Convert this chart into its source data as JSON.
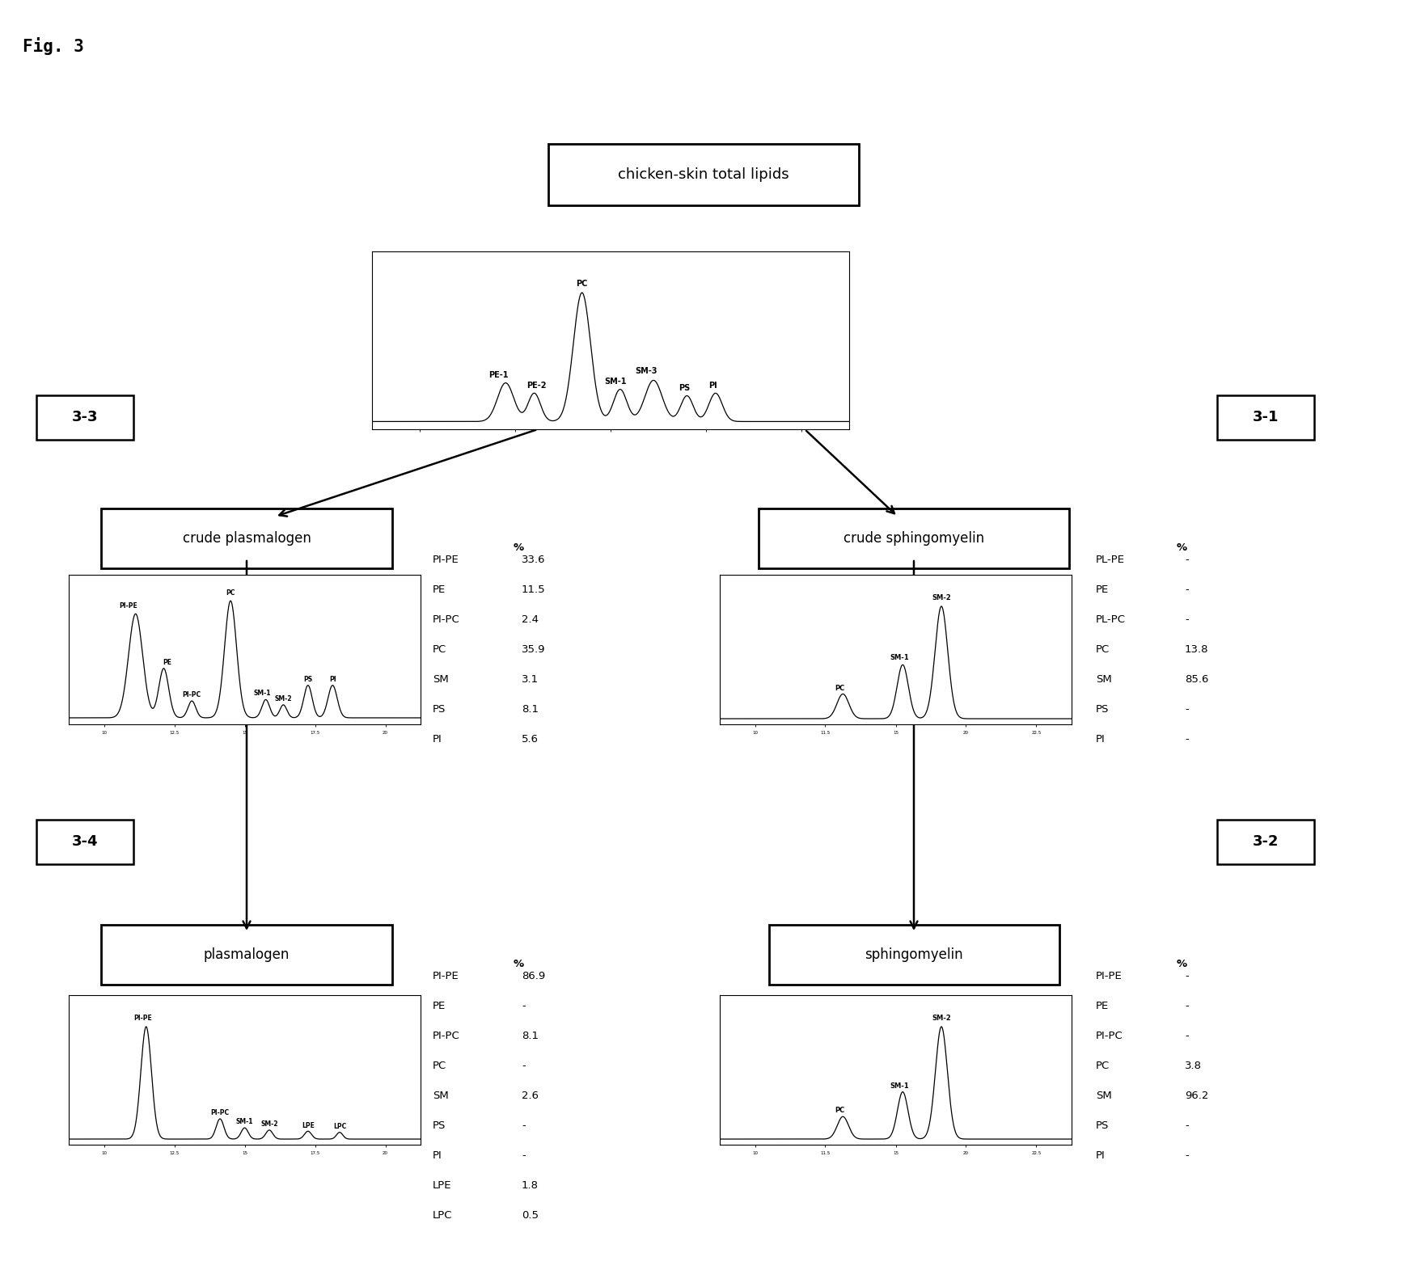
{
  "title": "Fig. 3",
  "bg": "#ffffff",
  "top_box": "chicken-skin total lipids",
  "box_cp": "crude plasmalogen",
  "box_cs": "crude sphingomyelin",
  "box_pl": "plasmalogen",
  "box_sm": "sphingomyelin",
  "num_33": "3-3",
  "num_31": "3-1",
  "num_34": "3-4",
  "num_32": "3-2",
  "pct_cp_labels": [
    "PI-PE",
    "PE",
    "PI-PC",
    "PC",
    "SM",
    "PS",
    "PI"
  ],
  "pct_cp_values": [
    "33.6",
    "11.5",
    "2.4",
    "35.9",
    "3.1",
    "8.1",
    "5.6"
  ],
  "pct_cs_labels": [
    "PL-PE",
    "PE",
    "PL-PC",
    "PC",
    "SM",
    "PS",
    "PI"
  ],
  "pct_cs_values": [
    "-",
    "-",
    "-",
    "13.8",
    "85.6",
    "-",
    "-"
  ],
  "pct_pl_labels": [
    "PI-PE",
    "PE",
    "PI-PC",
    "PC",
    "SM",
    "PS",
    "PI",
    "LPE",
    "LPC"
  ],
  "pct_pl_values": [
    "86.9",
    "-",
    "8.1",
    "-",
    "2.6",
    "-",
    "-",
    "1.8",
    "0.5"
  ],
  "pct_sm_labels": [
    "PI-PE",
    "PE",
    "PI-PC",
    "PC",
    "SM",
    "PS",
    "PI"
  ],
  "pct_sm_values": [
    "-",
    "-",
    "-",
    "3.8",
    "96.2",
    "-",
    "-"
  ]
}
